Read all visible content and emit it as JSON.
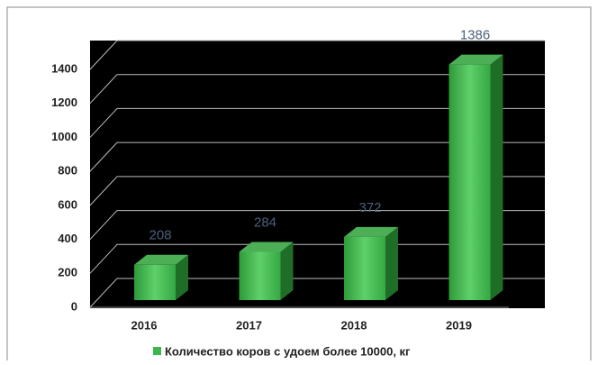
{
  "chart_data": {
    "type": "bar3d",
    "categories": [
      "2016",
      "2017",
      "2018",
      "2019"
    ],
    "series": [
      {
        "name": "Количество коров с удоем более 10000, кг",
        "color": "#3cb54a",
        "values": [
          208,
          284,
          372,
          1386
        ]
      }
    ],
    "ylim": [
      0,
      1400
    ],
    "yticks": [
      0,
      200,
      400,
      600,
      800,
      1000,
      1200,
      1400
    ],
    "grid": true,
    "legend": "bottom"
  }
}
